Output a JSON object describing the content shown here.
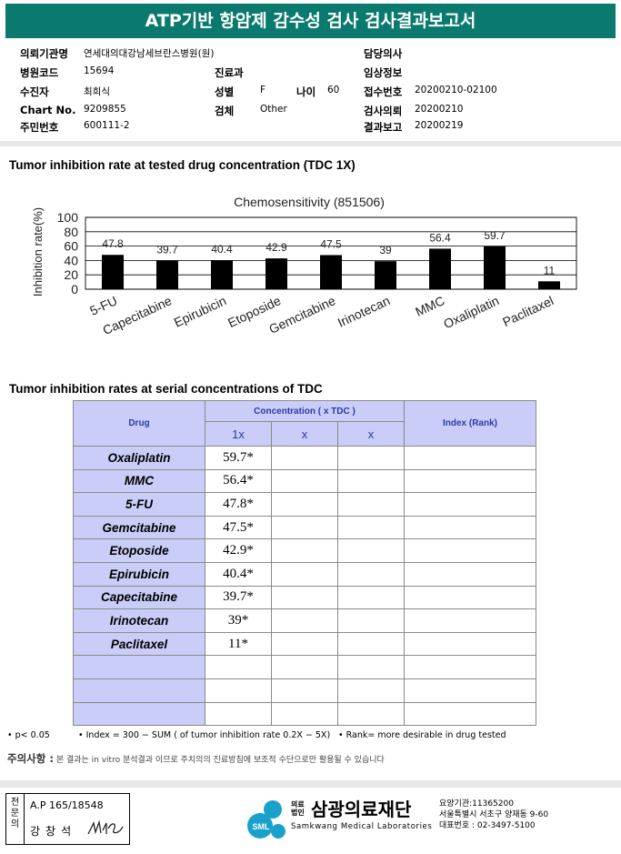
{
  "header": {
    "title": "ATP기반 항암제 감수성 검사 검사결과보고서"
  },
  "info": {
    "institution_label": "의뢰기관명",
    "institution": "연세대의대강남세브란스병원(원)",
    "hospital_code_label": "병원코드",
    "hospital_code": "15694",
    "recipient_label": "수진자",
    "recipient": "최희식",
    "chart_no_label": "Chart No.",
    "chart_no": "9209855",
    "resident_no_label": "주민번호",
    "resident_no": "600111-2",
    "department_label": "진료과",
    "sex_label": "성별",
    "sex": "F",
    "age_label": "나이",
    "age": "60",
    "specimen_label": "검체",
    "specimen": "Other",
    "doctor_label": "담당의사",
    "clinical_label": "임상정보",
    "receipt_no_label": "접수번호",
    "receipt_no": "20200210-02100",
    "request_date_label": "검사의뢰",
    "request_date": "20200210",
    "report_date_label": "결과보고",
    "report_date": "20200219"
  },
  "section1_title": "Tumor inhibition rate at tested drug concentration (TDC 1X)",
  "chart_data": {
    "type": "bar",
    "title": "Chemosensitivity (851506)",
    "ylabel": "Inhibition rate(%)",
    "xlabel": "",
    "categories": [
      "5-FU",
      "Capecitabine",
      "Epirubicin",
      "Etoposide",
      "Gemcitabine",
      "Irinotecan",
      "MMC",
      "Oxaliplatin",
      "Paclitaxel"
    ],
    "values": [
      47.8,
      39.7,
      40.4,
      42.9,
      47.5,
      39,
      56.4,
      59.7,
      11
    ],
    "value_labels": [
      "47.8",
      "39.7",
      "40.4",
      "42.9",
      "47.5",
      "39",
      "56.4",
      "59.7",
      "11"
    ],
    "ylim": [
      0,
      100
    ],
    "yticks": [
      "0",
      "20",
      "40",
      "60",
      "80",
      "100"
    ],
    "grid": true,
    "bar_color": "#000000"
  },
  "section2_title": "Tumor inhibition rates at serial concentrations of TDC",
  "table": {
    "drug_header": "Drug",
    "concentration_header": "Concentration ( x TDC )",
    "index_header": "Index (Rank)",
    "sub_headers": [
      "1x",
      "x",
      "x"
    ],
    "rows": [
      {
        "drug": "Oxaliplatin",
        "v1": "59.7*"
      },
      {
        "drug": "MMC",
        "v1": "56.4*"
      },
      {
        "drug": "5-FU",
        "v1": "47.8*"
      },
      {
        "drug": "Gemcitabine",
        "v1": "47.5*"
      },
      {
        "drug": "Etoposide",
        "v1": "42.9*"
      },
      {
        "drug": "Epirubicin",
        "v1": "40.4*"
      },
      {
        "drug": "Capecitabine",
        "v1": "39.7*"
      },
      {
        "drug": "Irinotecan",
        "v1": "39*"
      },
      {
        "drug": "Paclitaxel",
        "v1": "11*"
      }
    ]
  },
  "footnotes": {
    "p": "• p< 0.05",
    "index": "• Index = 300 − SUM ( of tumor inhibition rate 0.2X − 5X)",
    "rank": "• Rank= more desirable in drug tested"
  },
  "caution": {
    "label": "주의사항 :",
    "text": "본 결과는 in vitro 분석결과 이므로 주치의의 진료방침에 보조적 수단으로만 활용될 수 있습니다"
  },
  "signature": {
    "vertical": "전문의",
    "license": "A.P 165/18548",
    "name": "강창석"
  },
  "logo": {
    "small": "의료\n법인",
    "name": "삼광의료재단",
    "english": "Samkwang Medical Laboratories",
    "mark_text": "SML",
    "code": "요양기관:11365200",
    "address": "서울특별시 서초구 양재동 9-60",
    "phone": "대표번호 : 02-3497-5100"
  }
}
